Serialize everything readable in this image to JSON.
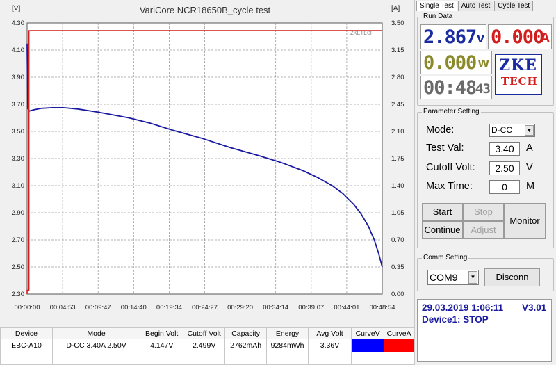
{
  "chart_data": {
    "type": "line",
    "title": "VariCore NCR18650B_cycle test",
    "left_axis_unit": "[V]",
    "right_axis_unit": "[A]",
    "ylim_left": [
      2.3,
      4.3
    ],
    "ylim_right": [
      0.0,
      3.5
    ],
    "yticks_left": [
      "4.30",
      "4.10",
      "3.90",
      "3.70",
      "3.50",
      "3.30",
      "3.10",
      "2.90",
      "2.70",
      "2.50",
      "2.30"
    ],
    "yticks_right": [
      "3.50",
      "3.15",
      "2.80",
      "2.45",
      "2.10",
      "1.75",
      "1.40",
      "1.05",
      "0.70",
      "0.35",
      "0.00"
    ],
    "xticks": [
      "00:00:00",
      "00:04:53",
      "00:09:47",
      "00:14:40",
      "00:19:34",
      "00:24:27",
      "00:29:20",
      "00:34:14",
      "00:39:07",
      "00:44:01",
      "00:48:54"
    ],
    "x_minutes_max": 48.9,
    "grid": true,
    "watermark": "ZKETECH",
    "series": [
      {
        "color": "#1a1aa0",
        "axis": "left",
        "x_minutes": [
          0.0,
          0.1,
          0.3,
          1.0,
          2.0,
          3.5,
          5.0,
          7.0,
          10.0,
          14.0,
          17.0,
          20.0,
          24.0,
          28.0,
          32.0,
          35.0,
          38.0,
          40.0,
          42.0,
          43.5,
          45.0,
          46.0,
          47.0,
          47.8,
          48.4,
          48.9
        ],
        "values": [
          4.147,
          3.67,
          3.65,
          3.66,
          3.67,
          3.675,
          3.675,
          3.665,
          3.64,
          3.6,
          3.56,
          3.51,
          3.45,
          3.38,
          3.32,
          3.27,
          3.21,
          3.16,
          3.1,
          3.04,
          2.96,
          2.89,
          2.8,
          2.7,
          2.6,
          2.499
        ]
      },
      {
        "color": "#d21d1d",
        "axis": "right",
        "x_minutes": [
          0.0,
          0.0,
          0.25,
          0.25,
          48.9
        ],
        "values": [
          0.0,
          0.05,
          0.05,
          3.4,
          3.4
        ]
      }
    ]
  },
  "table": {
    "headers": [
      "Device",
      "Mode",
      "Begin Volt",
      "Cutoff Volt",
      "Capacity",
      "Energy",
      "Avg Volt",
      "CurveV",
      "CurveA"
    ],
    "row": {
      "device": "EBC-A10",
      "mode": "D-CC  3.40A  2.50V",
      "begin_volt": "4.147V",
      "cutoff_volt": "2.499V",
      "capacity": "2762mAh",
      "energy": "9284mWh",
      "avg_volt": "3.36V",
      "curve_v_color": "#0000ff",
      "curve_a_color": "#ff0000"
    }
  },
  "panel": {
    "tabs": [
      "Single Test",
      "Auto Test",
      "Cycle Test"
    ],
    "run_data": {
      "title": "Run Data",
      "voltage": "2.867",
      "voltage_unit": "v",
      "current": "0.000",
      "current_unit": "A",
      "power": "0.000",
      "power_unit": "w",
      "time": "00:48",
      "time_sec": "43",
      "logo_top": "ZKE",
      "logo_bottom": "TECH"
    },
    "params": {
      "title": "Parameter Setting",
      "mode_label": "Mode:",
      "mode_value": "D-CC",
      "test_val_label": "Test Val:",
      "test_val_value": "3.40",
      "test_val_unit": "A",
      "cutoff_label": "Cutoff Volt:",
      "cutoff_value": "2.50",
      "cutoff_unit": "V",
      "max_time_label": "Max Time:",
      "max_time_value": "0",
      "max_time_unit": "M"
    },
    "buttons": {
      "start": "Start",
      "stop": "Stop",
      "continue": "Continue",
      "adjust": "Adjust",
      "monitor": "Monitor"
    },
    "comm": {
      "title": "Comm Setting",
      "port": "COM9",
      "disconnect": "Disconn"
    },
    "status": {
      "datetime": "29.03.2019 1:06:11",
      "version": "V3.01",
      "device": "Device1: STOP"
    }
  }
}
